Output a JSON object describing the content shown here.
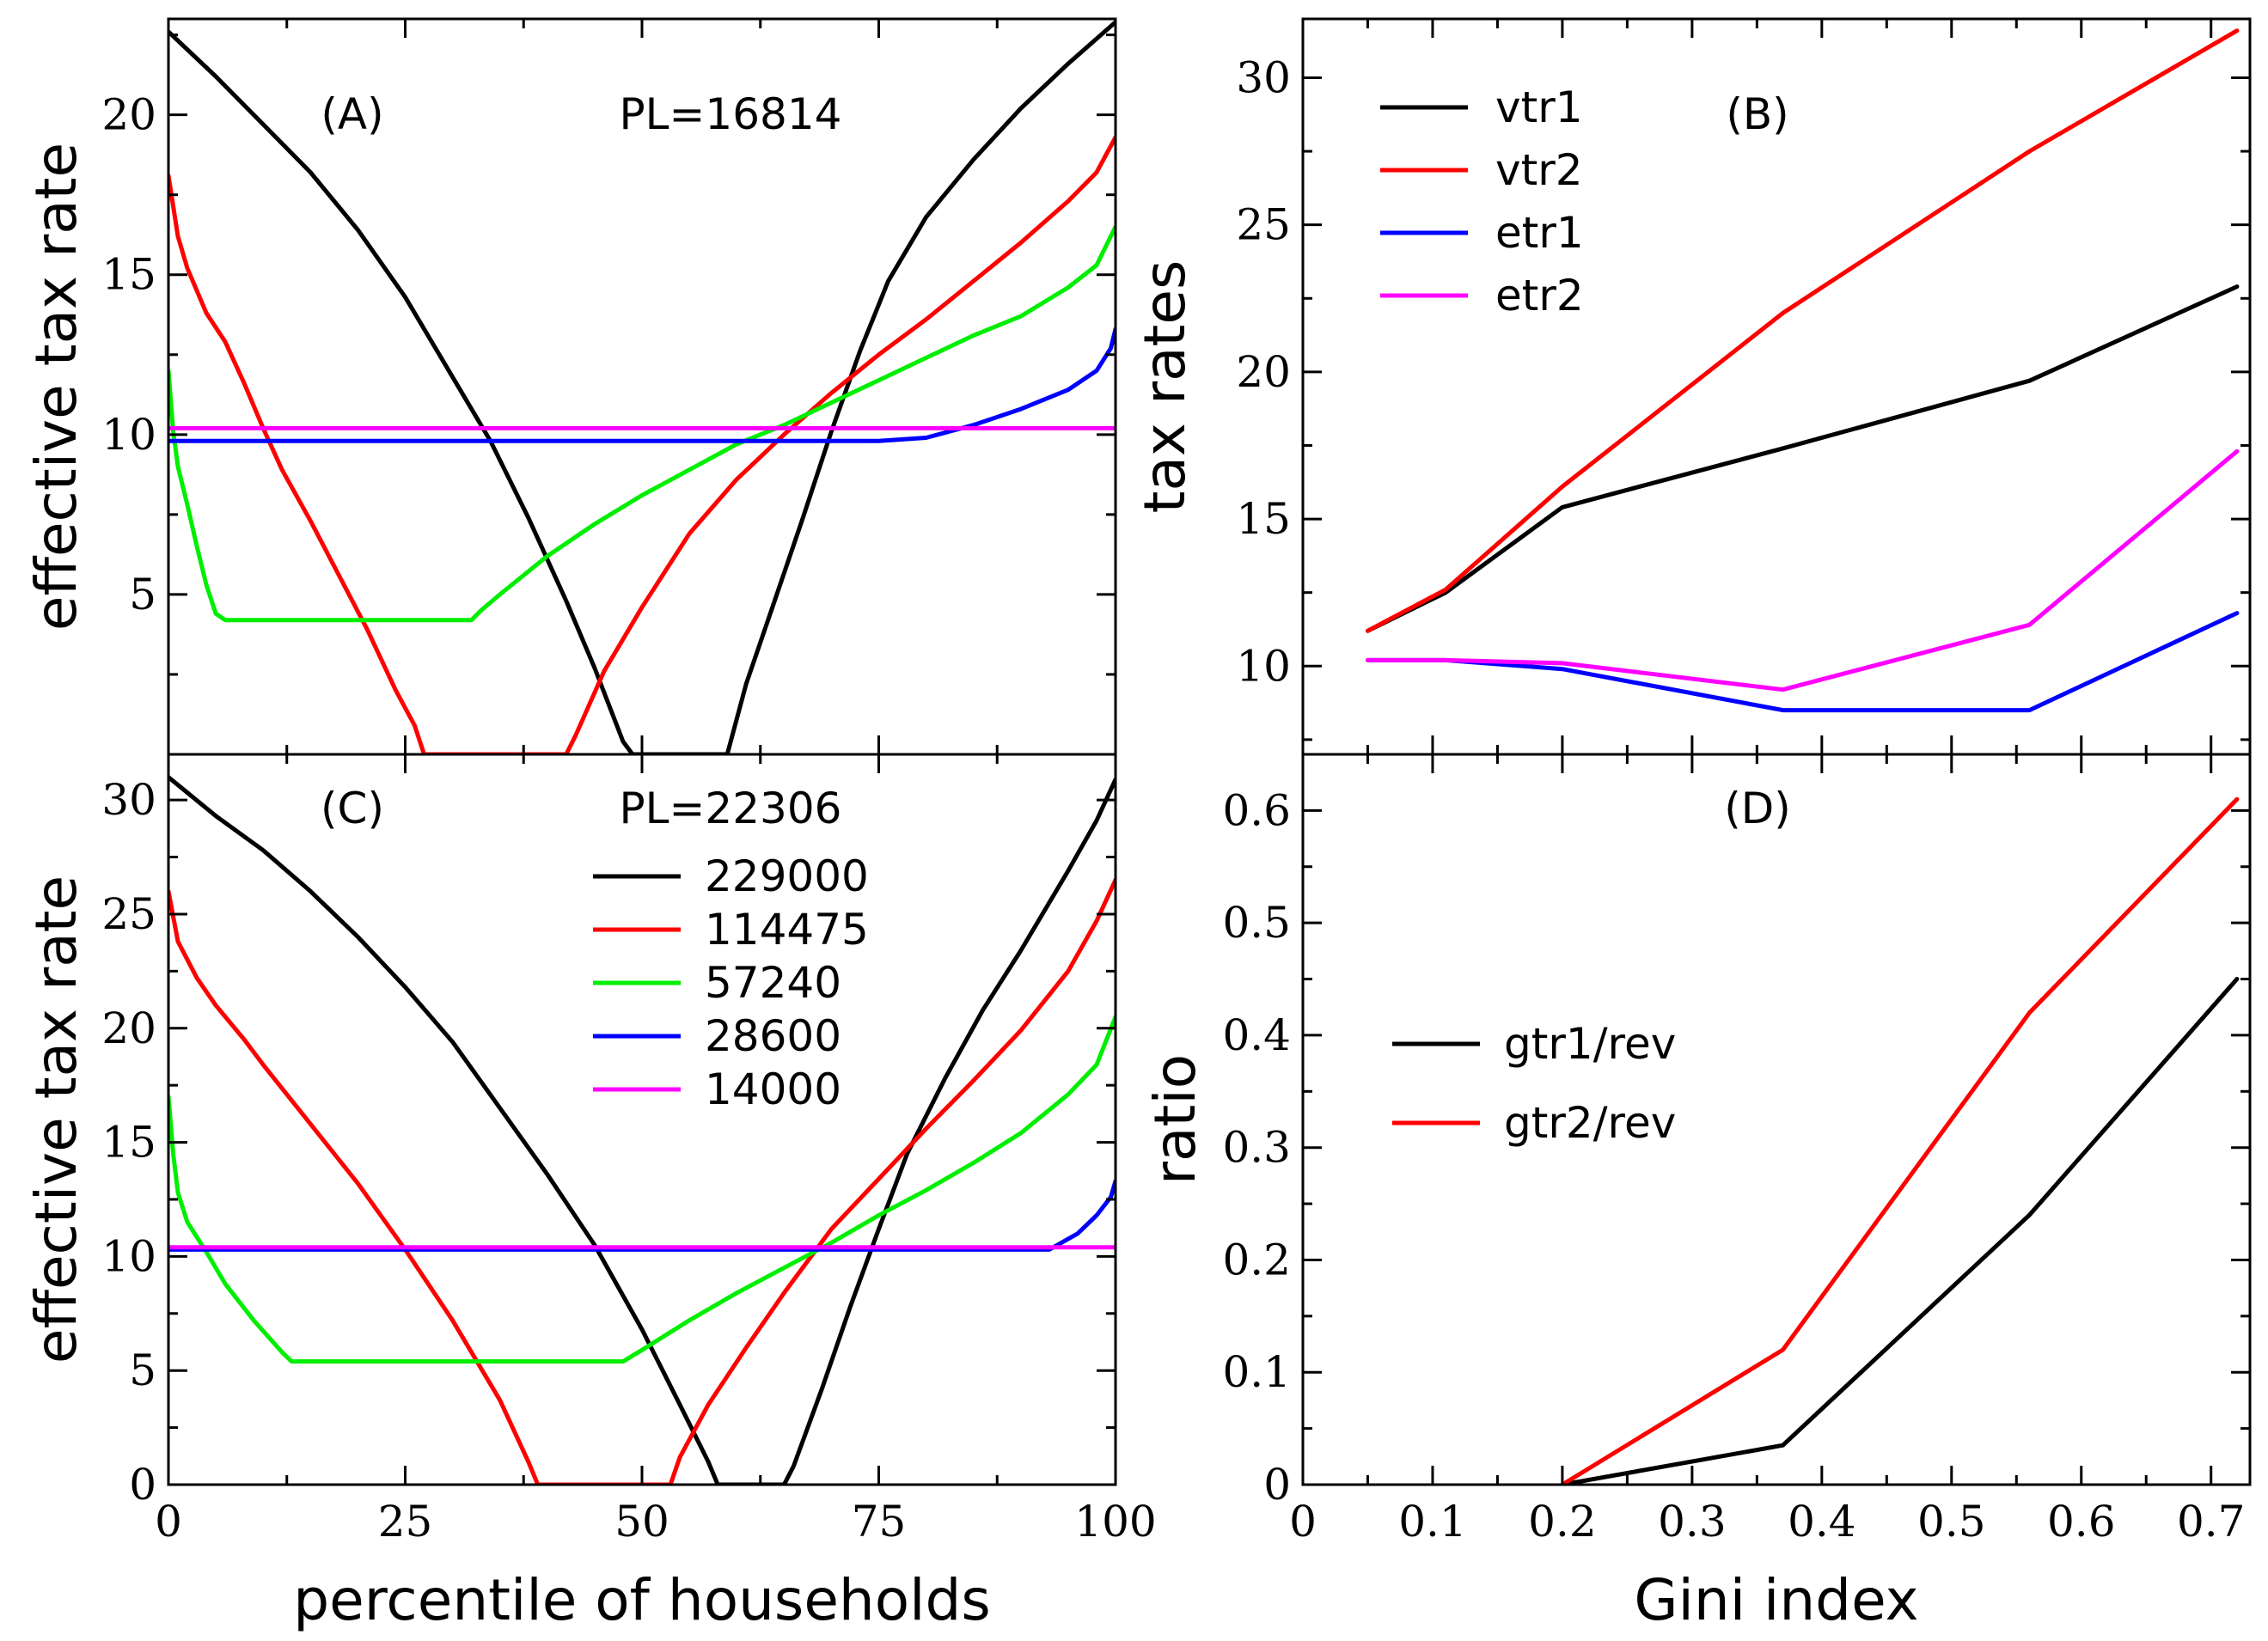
{
  "colors": {
    "black": "#000000",
    "red": "#ff0000",
    "green": "#00ee00",
    "blue": "#0000ff",
    "magenta": "#ff00ff"
  },
  "chart_data": [
    {
      "id": "A",
      "type": "line",
      "panel_label": "(A)",
      "annotation": "PL=16814",
      "xlabel": "",
      "ylabel": "effective tax rate",
      "xlim": [
        0,
        100
      ],
      "ylim": [
        0,
        23
      ],
      "xticks": [],
      "yticks": [
        5,
        10,
        15,
        20
      ],
      "series": [
        {
          "name": "229000",
          "color": "#000000",
          "points": [
            [
              0,
              22.6
            ],
            [
              5,
              21.2
            ],
            [
              10,
              19.7
            ],
            [
              15,
              18.2
            ],
            [
              20,
              16.4
            ],
            [
              25,
              14.3
            ],
            [
              30,
              11.8
            ],
            [
              34,
              9.8
            ],
            [
              38,
              7.4
            ],
            [
              42,
              4.8
            ],
            [
              45,
              2.7
            ],
            [
              48,
              0.4
            ],
            [
              49,
              0
            ],
            [
              59,
              0
            ],
            [
              61,
              2.2
            ],
            [
              64,
              4.8
            ],
            [
              67,
              7.4
            ],
            [
              70,
              10.1
            ],
            [
              73,
              12.6
            ],
            [
              76,
              14.8
            ],
            [
              80,
              16.8
            ],
            [
              85,
              18.6
            ],
            [
              90,
              20.2
            ],
            [
              95,
              21.6
            ],
            [
              100,
              22.9
            ]
          ]
        },
        {
          "name": "114475",
          "color": "#ff0000",
          "points": [
            [
              0,
              18.1
            ],
            [
              1,
              16.2
            ],
            [
              2,
              15.2
            ],
            [
              4,
              13.8
            ],
            [
              6,
              12.9
            ],
            [
              8,
              11.6
            ],
            [
              10,
              10.2
            ],
            [
              12,
              8.9
            ],
            [
              15,
              7.3
            ],
            [
              18,
              5.6
            ],
            [
              21,
              3.9
            ],
            [
              24,
              2.0
            ],
            [
              26,
              0.9
            ],
            [
              27,
              0
            ],
            [
              42,
              0
            ],
            [
              43,
              0.6
            ],
            [
              46,
              2.6
            ],
            [
              50,
              4.6
            ],
            [
              55,
              6.9
            ],
            [
              60,
              8.6
            ],
            [
              65,
              10.0
            ],
            [
              70,
              11.3
            ],
            [
              75,
              12.5
            ],
            [
              80,
              13.6
            ],
            [
              85,
              14.8
            ],
            [
              90,
              16.0
            ],
            [
              95,
              17.3
            ],
            [
              98,
              18.2
            ],
            [
              100,
              19.3
            ]
          ]
        },
        {
          "name": "57240",
          "color": "#00ee00",
          "points": [
            [
              0,
              12.0
            ],
            [
              0.5,
              10.1
            ],
            [
              1,
              9.0
            ],
            [
              2,
              7.8
            ],
            [
              3,
              6.5
            ],
            [
              4,
              5.3
            ],
            [
              5,
              4.4
            ],
            [
              6,
              4.2
            ],
            [
              32,
              4.2
            ],
            [
              33,
              4.5
            ],
            [
              35,
              5.0
            ],
            [
              40,
              6.2
            ],
            [
              45,
              7.2
            ],
            [
              50,
              8.1
            ],
            [
              55,
              8.9
            ],
            [
              60,
              9.7
            ],
            [
              65,
              10.3
            ],
            [
              70,
              11.0
            ],
            [
              75,
              11.7
            ],
            [
              80,
              12.4
            ],
            [
              85,
              13.1
            ],
            [
              90,
              13.7
            ],
            [
              95,
              14.6
            ],
            [
              98,
              15.3
            ],
            [
              100,
              16.5
            ]
          ]
        },
        {
          "name": "28600",
          "color": "#0000ff",
          "points": [
            [
              0,
              9.8
            ],
            [
              75,
              9.8
            ],
            [
              80,
              9.9
            ],
            [
              85,
              10.3
            ],
            [
              90,
              10.8
            ],
            [
              95,
              11.4
            ],
            [
              98,
              12.0
            ],
            [
              99.5,
              12.7
            ],
            [
              100,
              13.3
            ]
          ]
        },
        {
          "name": "14000",
          "color": "#ff00ff",
          "points": [
            [
              0,
              10.2
            ],
            [
              100,
              10.2
            ]
          ]
        }
      ]
    },
    {
      "id": "B",
      "type": "line",
      "panel_label": "(B)",
      "annotation": "",
      "xlabel": "",
      "ylabel": "tax rates",
      "xlim": [
        0,
        0.73
      ],
      "ylim": [
        7,
        32
      ],
      "xticks": [],
      "yticks": [
        10,
        15,
        20,
        25,
        30
      ],
      "legend": [
        "vtr1",
        "vtr2",
        "etr1",
        "etr2"
      ],
      "series": [
        {
          "name": "vtr1",
          "color": "#000000",
          "points": [
            [
              0.05,
              11.2
            ],
            [
              0.11,
              12.5
            ],
            [
              0.2,
              15.4
            ],
            [
              0.37,
              17.4
            ],
            [
              0.56,
              19.7
            ],
            [
              0.72,
              22.9
            ]
          ]
        },
        {
          "name": "vtr2",
          "color": "#ff0000",
          "points": [
            [
              0.05,
              11.2
            ],
            [
              0.11,
              12.6
            ],
            [
              0.2,
              16.1
            ],
            [
              0.37,
              22.0
            ],
            [
              0.56,
              27.5
            ],
            [
              0.72,
              31.6
            ]
          ]
        },
        {
          "name": "etr1",
          "color": "#0000ff",
          "points": [
            [
              0.05,
              10.2
            ],
            [
              0.11,
              10.2
            ],
            [
              0.2,
              9.9
            ],
            [
              0.37,
              8.5
            ],
            [
              0.56,
              8.5
            ],
            [
              0.72,
              11.8
            ]
          ]
        },
        {
          "name": "etr2",
          "color": "#ff00ff",
          "points": [
            [
              0.05,
              10.2
            ],
            [
              0.11,
              10.2
            ],
            [
              0.2,
              10.1
            ],
            [
              0.37,
              9.2
            ],
            [
              0.56,
              11.4
            ],
            [
              0.72,
              17.3
            ]
          ]
        }
      ]
    },
    {
      "id": "C",
      "type": "line",
      "panel_label": "(C)",
      "annotation": "PL=22306",
      "xlabel": "percentile of households",
      "ylabel": "effective tax rate",
      "xlim": [
        0,
        100
      ],
      "ylim": [
        0,
        32
      ],
      "xticks": [
        0,
        25,
        50,
        75,
        100
      ],
      "yticks": [
        0,
        5,
        10,
        15,
        20,
        25,
        30
      ],
      "legend": [
        "229000",
        "114475",
        "57240",
        "28600",
        "14000"
      ],
      "series": [
        {
          "name": "229000",
          "color": "#000000",
          "points": [
            [
              0,
              31.0
            ],
            [
              5,
              29.3
            ],
            [
              10,
              27.8
            ],
            [
              15,
              26.0
            ],
            [
              20,
              24.0
            ],
            [
              25,
              21.8
            ],
            [
              30,
              19.4
            ],
            [
              35,
              16.5
            ],
            [
              40,
              13.6
            ],
            [
              45,
              10.5
            ],
            [
              50,
              6.8
            ],
            [
              54,
              3.5
            ],
            [
              57,
              1.0
            ],
            [
              58,
              0
            ],
            [
              65,
              0
            ],
            [
              66,
              0.8
            ],
            [
              69,
              4.2
            ],
            [
              72,
              7.8
            ],
            [
              75,
              11.2
            ],
            [
              78,
              14.5
            ],
            [
              82,
              17.8
            ],
            [
              86,
              20.8
            ],
            [
              90,
              23.4
            ],
            [
              95,
              26.9
            ],
            [
              98,
              29.1
            ],
            [
              100,
              30.9
            ]
          ]
        },
        {
          "name": "114475",
          "color": "#ff0000",
          "points": [
            [
              0,
              26.0
            ],
            [
              1,
              23.8
            ],
            [
              3,
              22.2
            ],
            [
              5,
              21.0
            ],
            [
              8,
              19.5
            ],
            [
              10,
              18.4
            ],
            [
              15,
              15.8
            ],
            [
              20,
              13.2
            ],
            [
              25,
              10.3
            ],
            [
              30,
              7.2
            ],
            [
              35,
              3.7
            ],
            [
              38,
              1.0
            ],
            [
              39,
              0
            ],
            [
              53,
              0
            ],
            [
              54,
              1.2
            ],
            [
              57,
              3.5
            ],
            [
              61,
              6.0
            ],
            [
              65,
              8.4
            ],
            [
              70,
              11.2
            ],
            [
              75,
              13.4
            ],
            [
              80,
              15.6
            ],
            [
              85,
              17.7
            ],
            [
              90,
              19.9
            ],
            [
              95,
              22.5
            ],
            [
              98,
              24.7
            ],
            [
              100,
              26.5
            ]
          ]
        },
        {
          "name": "57240",
          "color": "#00ee00",
          "points": [
            [
              0,
              17.0
            ],
            [
              0.5,
              14.5
            ],
            [
              1,
              12.8
            ],
            [
              2,
              11.5
            ],
            [
              4,
              10.2
            ],
            [
              6,
              8.8
            ],
            [
              9,
              7.2
            ],
            [
              12,
              5.8
            ],
            [
              13,
              5.4
            ],
            [
              48,
              5.4
            ],
            [
              50,
              5.9
            ],
            [
              55,
              7.2
            ],
            [
              60,
              8.4
            ],
            [
              65,
              9.5
            ],
            [
              70,
              10.6
            ],
            [
              75,
              11.8
            ],
            [
              80,
              12.9
            ],
            [
              85,
              14.1
            ],
            [
              90,
              15.4
            ],
            [
              95,
              17.1
            ],
            [
              98,
              18.4
            ],
            [
              100,
              20.5
            ]
          ]
        },
        {
          "name": "28600",
          "color": "#0000ff",
          "points": [
            [
              0,
              10.3
            ],
            [
              93,
              10.3
            ],
            [
              96,
              11.0
            ],
            [
              98,
              11.8
            ],
            [
              99.5,
              12.6
            ],
            [
              100,
              13.3
            ]
          ]
        },
        {
          "name": "14000",
          "color": "#ff00ff",
          "points": [
            [
              0,
              10.4
            ],
            [
              100,
              10.4
            ]
          ]
        }
      ]
    },
    {
      "id": "D",
      "type": "line",
      "panel_label": "(D)",
      "annotation": "",
      "xlabel": "Gini index",
      "ylabel": "ratio",
      "xlim": [
        0,
        0.73
      ],
      "ylim": [
        0,
        0.65
      ],
      "xticks": [
        0,
        0.1,
        0.2,
        0.3,
        0.4,
        0.5,
        0.6,
        0.7
      ],
      "yticks": [
        0,
        0.1,
        0.2,
        0.3,
        0.4,
        0.5,
        0.6
      ],
      "legend": [
        "gtr1/rev",
        "gtr2/rev"
      ],
      "series": [
        {
          "name": "gtr1/rev",
          "color": "#000000",
          "points": [
            [
              0.2,
              0
            ],
            [
              0.37,
              0.035
            ],
            [
              0.56,
              0.24
            ],
            [
              0.72,
              0.45
            ]
          ]
        },
        {
          "name": "gtr2/rev",
          "color": "#ff0000",
          "points": [
            [
              0.2,
              0
            ],
            [
              0.37,
              0.12
            ],
            [
              0.56,
              0.42
            ],
            [
              0.72,
              0.61
            ]
          ]
        }
      ]
    }
  ]
}
